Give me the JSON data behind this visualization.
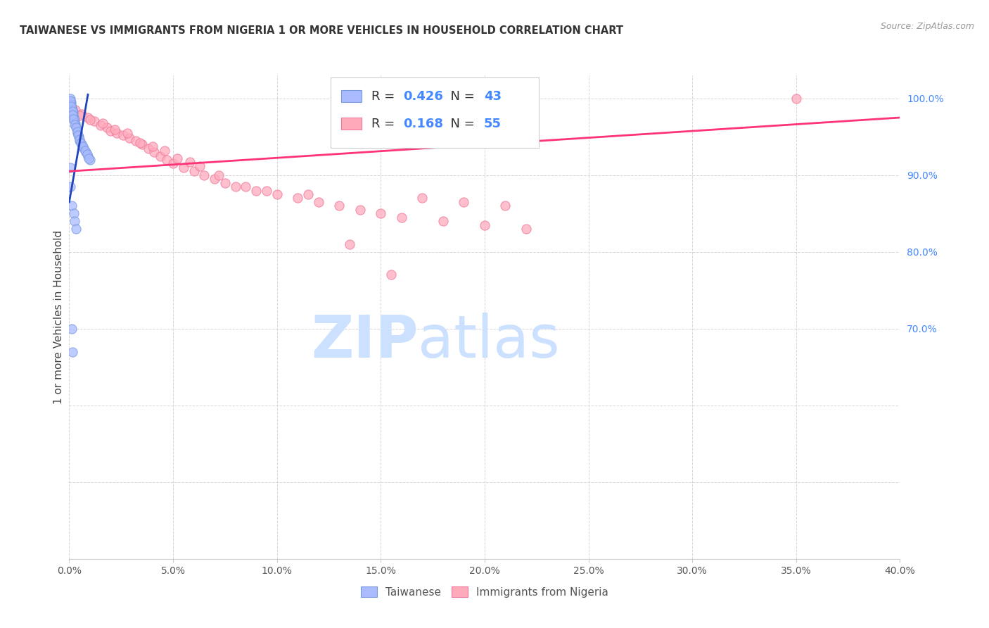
{
  "title": "TAIWANESE VS IMMIGRANTS FROM NIGERIA 1 OR MORE VEHICLES IN HOUSEHOLD CORRELATION CHART",
  "source": "Source: ZipAtlas.com",
  "ylabel": "1 or more Vehicles in Household",
  "xlim": [
    0.0,
    40.0
  ],
  "ylim": [
    40.0,
    103.0
  ],
  "taiwanese_color": "#aabbff",
  "taiwanese_edge": "#7799dd",
  "nigeria_color": "#ffaabb",
  "nigeria_edge": "#ee7799",
  "regression_tw_color": "#2244bb",
  "regression_ng_color": "#ff3377",
  "taiwanese_R": 0.426,
  "taiwanese_N": 43,
  "nigeria_R": 0.168,
  "nigeria_N": 55,
  "legend_color_R": "#333333",
  "legend_color_N": "#4488ff",
  "watermark_color": "#cce0ff",
  "ytick_color": "#4488ff",
  "xtick_color": "#555555",
  "tw_x": [
    0.05,
    0.08,
    0.1,
    0.12,
    0.15,
    0.18,
    0.2,
    0.22,
    0.25,
    0.28,
    0.3,
    0.35,
    0.4,
    0.45,
    0.5,
    0.6,
    0.7,
    0.8,
    0.9,
    1.0,
    0.06,
    0.09,
    0.14,
    0.16,
    0.19,
    0.24,
    0.32,
    0.38,
    0.42,
    0.48,
    0.55,
    0.65,
    0.75,
    0.85,
    0.95,
    0.04,
    0.07,
    0.11,
    0.13,
    0.17,
    0.21,
    0.26,
    0.33
  ],
  "tw_y": [
    100.0,
    99.5,
    99.2,
    98.8,
    98.5,
    98.2,
    97.8,
    97.5,
    97.2,
    96.8,
    96.5,
    96.0,
    95.5,
    95.0,
    94.5,
    94.0,
    93.5,
    93.0,
    92.5,
    92.0,
    99.7,
    99.0,
    98.3,
    97.9,
    97.3,
    96.6,
    96.2,
    95.7,
    95.2,
    94.7,
    94.2,
    93.7,
    93.2,
    92.7,
    92.2,
    91.0,
    88.5,
    86.0,
    70.0,
    67.0,
    85.0,
    84.0,
    83.0
  ],
  "ng_x": [
    0.3,
    0.6,
    0.9,
    1.2,
    1.5,
    1.8,
    2.0,
    2.3,
    2.6,
    2.9,
    3.2,
    3.5,
    3.8,
    4.1,
    4.4,
    4.7,
    5.0,
    5.5,
    6.0,
    6.5,
    7.0,
    7.5,
    8.0,
    9.0,
    10.0,
    11.0,
    12.0,
    13.0,
    14.0,
    15.0,
    16.0,
    18.0,
    20.0,
    22.0,
    35.0,
    0.5,
    1.0,
    1.6,
    2.2,
    2.8,
    3.4,
    4.0,
    4.6,
    5.2,
    5.8,
    6.3,
    7.2,
    8.5,
    9.5,
    11.5,
    13.5,
    15.5,
    17.0,
    19.0,
    21.0
  ],
  "ng_y": [
    98.5,
    98.0,
    97.5,
    97.0,
    96.5,
    96.2,
    95.8,
    95.5,
    95.2,
    94.8,
    94.5,
    94.0,
    93.5,
    93.0,
    92.5,
    92.0,
    91.5,
    91.0,
    90.5,
    90.0,
    89.5,
    89.0,
    88.5,
    88.0,
    87.5,
    87.0,
    86.5,
    86.0,
    85.5,
    85.0,
    84.5,
    84.0,
    83.5,
    83.0,
    100.0,
    97.8,
    97.2,
    96.8,
    95.9,
    95.5,
    94.2,
    93.7,
    93.2,
    92.2,
    91.7,
    91.2,
    90.0,
    88.5,
    88.0,
    87.5,
    81.0,
    77.0,
    87.0,
    86.5,
    86.0
  ],
  "ng_line_x0": 0.0,
  "ng_line_y0": 90.5,
  "ng_line_x1": 40.0,
  "ng_line_y1": 97.5,
  "tw_line_x0": 0.0,
  "tw_line_y0": 86.5,
  "tw_line_x1": 0.9,
  "tw_line_y1": 100.5
}
